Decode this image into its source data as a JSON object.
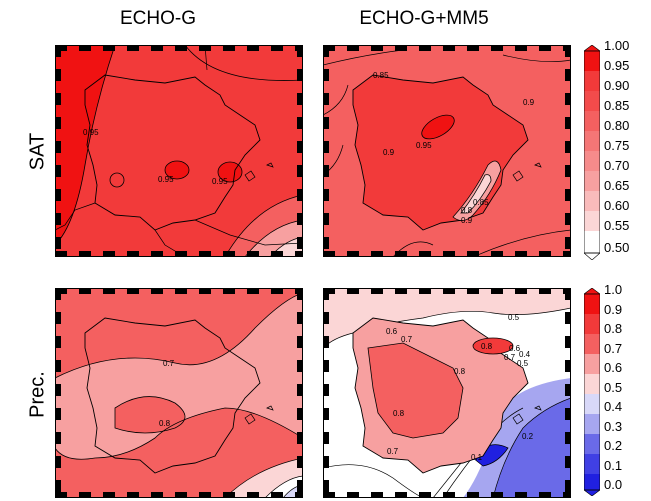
{
  "columns": [
    "ECHO-G",
    "ECHO-G+MM5"
  ],
  "rows": [
    "SAT",
    "Prec."
  ],
  "colors": {
    "deep_red": "#f01212",
    "red": "#f23a3a",
    "mid_red": "#f46060",
    "light_red": "#f7a0a0",
    "pale_red": "#fbd6d6",
    "white": "#ffffff",
    "pale_blue": "#d8d8f8",
    "light_blue": "#a6a6f0",
    "mid_blue": "#6a6ae8",
    "deep_blue": "#2020e0"
  },
  "colorbar_sat": {
    "ticks": [
      "1.00",
      "0.95",
      "0.90",
      "0.85",
      "0.80",
      "0.75",
      "0.70",
      "0.65",
      "0.60",
      "0.55",
      "0.50"
    ]
  },
  "colorbar_prec": {
    "ticks": [
      "1.0",
      "0.9",
      "0.8",
      "0.7",
      "0.6",
      "0.5",
      "0.4",
      "0.3",
      "0.2",
      "0.1",
      "0.0"
    ]
  },
  "panel_labels": {
    "sat_echo": [
      "0.95",
      "0.95",
      "0.95"
    ],
    "sat_mm5": [
      "0.85",
      "0.9",
      "0.95",
      "0.9",
      "0.8",
      "0.85",
      "0.9"
    ],
    "prec_echo": [
      "0.7",
      "0.8"
    ],
    "prec_mm5": [
      "0.5",
      "0.6",
      "0.7",
      "0.8",
      "0.6",
      "0.7",
      "0.4",
      "0.5",
      "0.8",
      "0.8",
      "0.7",
      "0.2",
      "0.1"
    ]
  }
}
